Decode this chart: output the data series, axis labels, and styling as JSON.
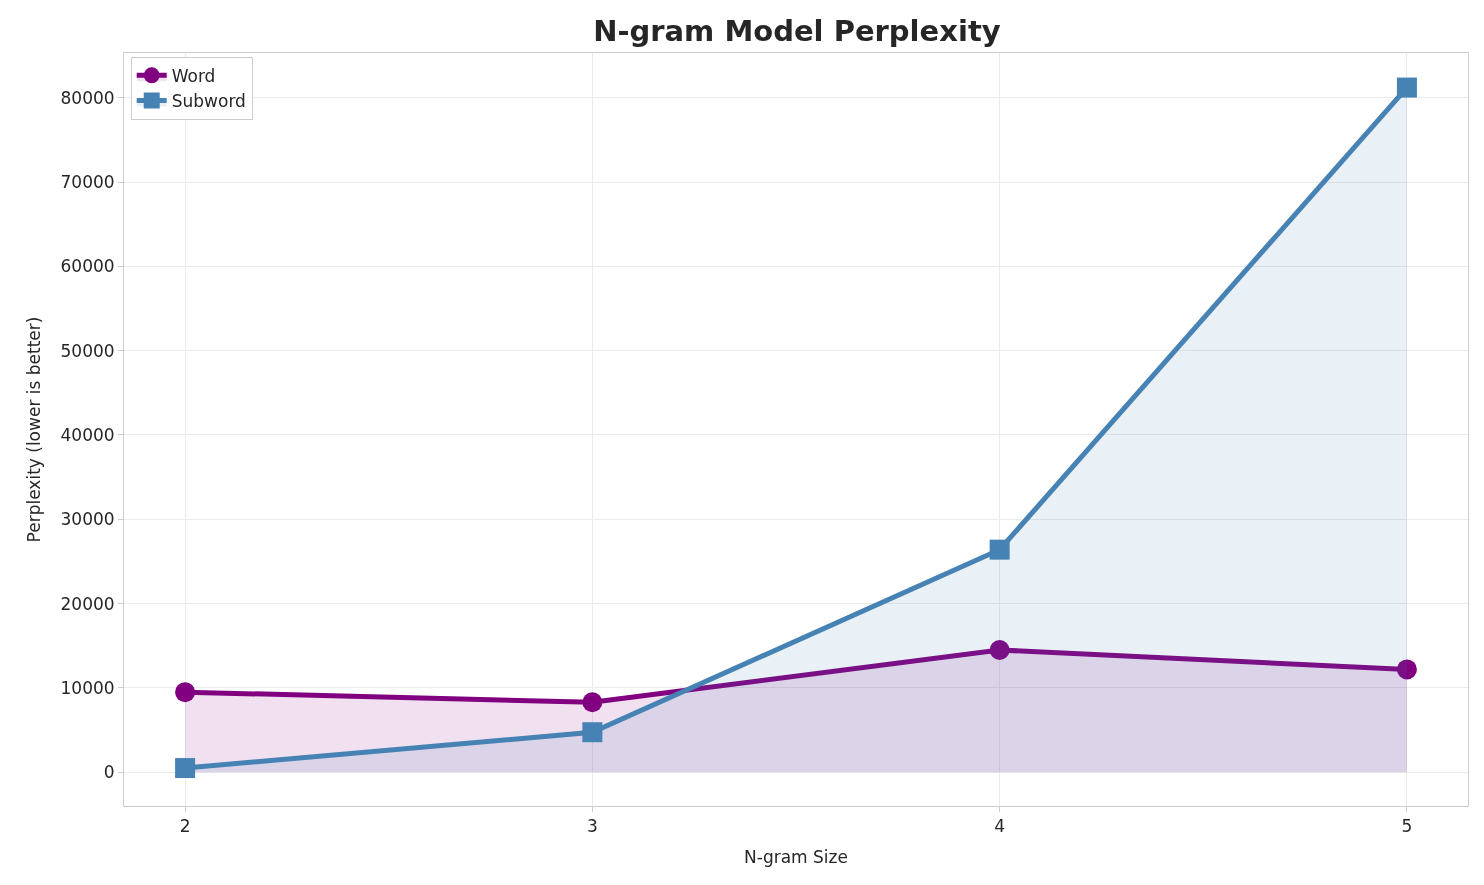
{
  "chart_data": {
    "type": "area",
    "title": "N-gram Model Perplexity",
    "xlabel": "N-gram Size",
    "ylabel": "Perplexity (lower is better)",
    "x": [
      2,
      3,
      4,
      5
    ],
    "series": [
      {
        "name": "Word",
        "color": "#800080",
        "marker": "circle",
        "values": [
          9500,
          8300,
          14500,
          12200
        ]
      },
      {
        "name": "Subword",
        "color": "#4682b4",
        "marker": "square",
        "values": [
          500,
          4750,
          26400,
          81200
        ]
      }
    ],
    "xlim": [
      1.85,
      5.15
    ],
    "xticks": [
      2,
      3,
      4,
      5
    ],
    "ylim": [
      -4000,
      85300
    ],
    "yticks": [
      0,
      10000,
      20000,
      30000,
      40000,
      50000,
      60000,
      70000,
      80000
    ],
    "grid": true,
    "legend": "top left"
  }
}
